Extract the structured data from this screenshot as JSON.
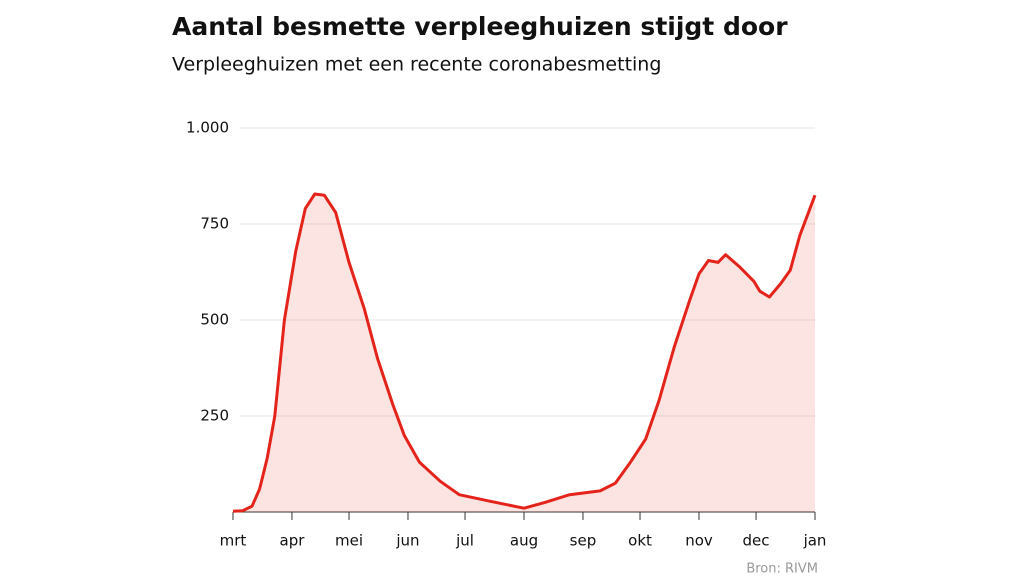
{
  "chart_data": {
    "type": "area",
    "title": "Aantal besmette verpleeghuizen stijgt door",
    "subtitle": "Verpleeghuizen met een recente coronabesmetting",
    "source": "Bron: RIVM",
    "x": [
      0,
      5,
      10,
      14,
      18,
      22,
      27,
      33,
      38,
      43,
      48,
      54,
      61,
      69,
      76,
      84,
      90,
      98,
      109,
      119,
      135,
      153,
      164,
      177,
      193,
      201,
      209,
      217,
      224,
      232,
      240,
      245,
      250,
      255,
      259,
      266,
      274,
      277,
      282,
      288,
      293,
      298,
      306
    ],
    "series": [
      {
        "name": "Verpleeghuizen",
        "color": "#e4231b",
        "values": [
          2,
          3,
          15,
          60,
          140,
          250,
          500,
          680,
          790,
          828,
          825,
          780,
          650,
          530,
          400,
          280,
          200,
          130,
          80,
          45,
          28,
          10,
          25,
          45,
          55,
          75,
          130,
          190,
          290,
          430,
          550,
          620,
          655,
          650,
          670,
          640,
          600,
          575,
          560,
          595,
          630,
          720,
          825
        ]
      }
    ],
    "xlim": [
      0,
      306
    ],
    "xticks": [
      {
        "value": 0,
        "label": "mrt"
      },
      {
        "value": 31,
        "label": "apr"
      },
      {
        "value": 61,
        "label": "mei"
      },
      {
        "value": 92,
        "label": "jun"
      },
      {
        "value": 122,
        "label": "jul"
      },
      {
        "value": 153,
        "label": "aug"
      },
      {
        "value": 184,
        "label": "sep"
      },
      {
        "value": 214,
        "label": "okt"
      },
      {
        "value": 245,
        "label": "nov"
      },
      {
        "value": 275,
        "label": "dec"
      },
      {
        "value": 306,
        "label": "jan"
      }
    ],
    "ylim": [
      0,
      1000
    ],
    "yticks": [
      {
        "value": 1000,
        "label": "1.000"
      },
      750,
      500,
      250
    ],
    "grid": true
  }
}
